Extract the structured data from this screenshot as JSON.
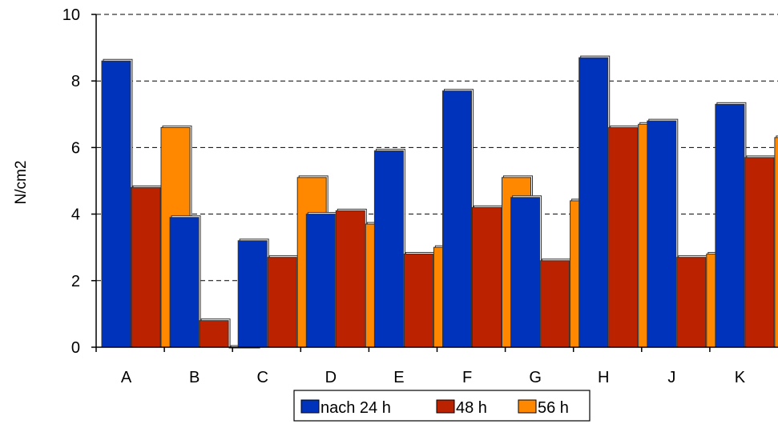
{
  "chart_data": {
    "type": "bar",
    "ylabel": "N/cm2",
    "xlabel": "",
    "ylim": [
      0,
      10
    ],
    "yticks": [
      0,
      2,
      4,
      6,
      8,
      10
    ],
    "grid": "horizontal-dashed",
    "legend": "bottom",
    "categories": [
      "A",
      "B",
      "C",
      "D",
      "E",
      "F",
      "G",
      "H",
      "J",
      "K"
    ],
    "series": [
      {
        "name": "nach 24 h",
        "color": "#0033bb",
        "values": [
          8.6,
          3.9,
          3.2,
          4.0,
          5.9,
          7.7,
          4.5,
          8.7,
          6.8,
          7.3
        ]
      },
      {
        "name": "48 h",
        "color": "#bb2200",
        "values": [
          4.8,
          0.8,
          2.7,
          4.1,
          2.8,
          4.2,
          2.6,
          6.6,
          2.7,
          5.7
        ]
      },
      {
        "name": "56 h",
        "color": "#ff8800",
        "values": [
          6.6,
          0.0,
          5.1,
          3.7,
          3.0,
          5.1,
          4.4,
          6.7,
          2.8,
          6.3
        ]
      }
    ]
  }
}
